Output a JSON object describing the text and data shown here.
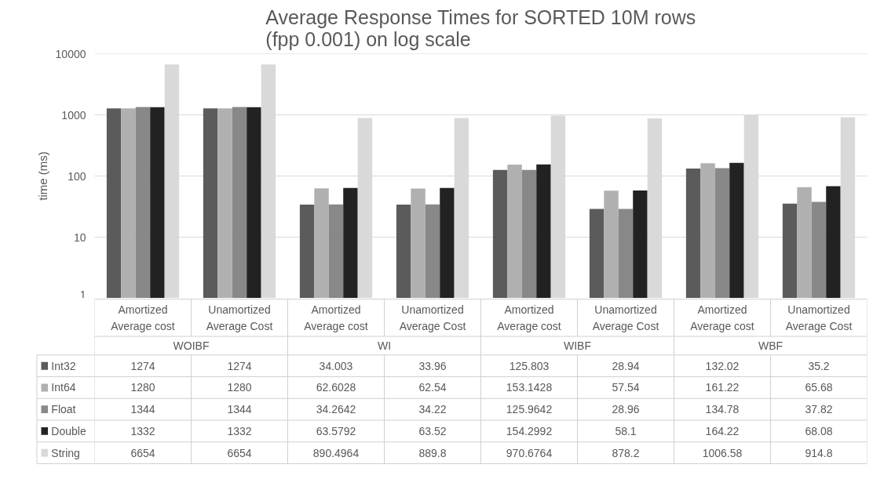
{
  "chart_data": {
    "type": "bar",
    "title": "Average Response Times for SORTED 10M rows\n(fpp 0.001) on log scale",
    "ylabel": "time (ms)",
    "categories": [
      "Amortized\nAverage cost",
      "Unamortized\nAverage Cost",
      "Amortized\nAverage cost",
      "Unamortized\nAverage Cost",
      "Amortized\nAverage cost",
      "Unamortized\nAverage Cost",
      "Amortized\nAverage cost",
      "Unamortized\nAverage Cost"
    ],
    "annotations": [
      "WOIBF",
      "WI",
      "WIBF",
      "WBF"
    ],
    "series": [
      {
        "name": "Int32",
        "color": "#5b5b5b",
        "values": [
          1274,
          1274,
          34.003,
          33.96,
          125.803,
          28.94,
          132.02,
          35.2
        ]
      },
      {
        "name": "Int64",
        "color": "#b0b0b0",
        "values": [
          1280,
          1280,
          62.6028,
          62.54,
          153.1428,
          57.54,
          161.22,
          65.68
        ]
      },
      {
        "name": "Float",
        "color": "#888888",
        "values": [
          1344,
          1344,
          34.2642,
          34.22,
          125.9642,
          28.96,
          134.78,
          37.82
        ]
      },
      {
        "name": "Double",
        "color": "#222222",
        "values": [
          1332,
          1332,
          63.5792,
          63.52,
          154.2992,
          58.1,
          164.22,
          68.08
        ]
      },
      {
        "name": "String",
        "color": "#d9d9d9",
        "values": [
          6654,
          6654,
          890.4964,
          889.8,
          970.6764,
          878.2,
          1006.58,
          914.8
        ]
      }
    ],
    "log": "y",
    "ylim": [
      1,
      10000
    ],
    "yticks": [
      1,
      10,
      100,
      1000,
      10000
    ],
    "grid": "y",
    "legend": "bottom",
    "data_labels": true
  }
}
